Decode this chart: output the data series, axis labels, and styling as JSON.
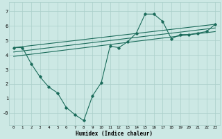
{
  "xlabel": "Humidex (Indice chaleur)",
  "bg_color": "#cce8e4",
  "grid_color": "#aacfca",
  "line_color": "#1a6b5a",
  "xlim": [
    -0.5,
    23.5
  ],
  "ylim": [
    -0.8,
    7.6
  ],
  "xticks": [
    0,
    1,
    2,
    3,
    4,
    5,
    6,
    7,
    8,
    9,
    10,
    11,
    12,
    13,
    14,
    15,
    16,
    17,
    18,
    19,
    20,
    21,
    22,
    23
  ],
  "yticks": [
    0,
    1,
    2,
    3,
    4,
    5,
    6,
    7
  ],
  "ytick_labels": [
    "-0",
    "1",
    "2",
    "3",
    "4",
    "5",
    "6",
    "7"
  ],
  "main_line": {
    "x": [
      0,
      1,
      2,
      3,
      4,
      5,
      6,
      7,
      8,
      9,
      10,
      11,
      12,
      13,
      14,
      15,
      16,
      17,
      18,
      19,
      20,
      21,
      22,
      23
    ],
    "y": [
      4.5,
      4.5,
      3.4,
      2.5,
      1.8,
      1.4,
      0.4,
      -0.1,
      -0.5,
      1.2,
      2.1,
      4.6,
      4.5,
      4.9,
      5.5,
      6.8,
      6.8,
      6.3,
      5.1,
      5.4,
      5.4,
      5.5,
      5.6,
      6.1
    ]
  },
  "trend_lines": [
    {
      "x0": 0,
      "y0": 4.5,
      "x1": 23,
      "y1": 6.1
    },
    {
      "x0": 0,
      "y0": 4.2,
      "x1": 23,
      "y1": 5.85
    },
    {
      "x0": 0,
      "y0": 3.9,
      "x1": 23,
      "y1": 5.6
    }
  ]
}
